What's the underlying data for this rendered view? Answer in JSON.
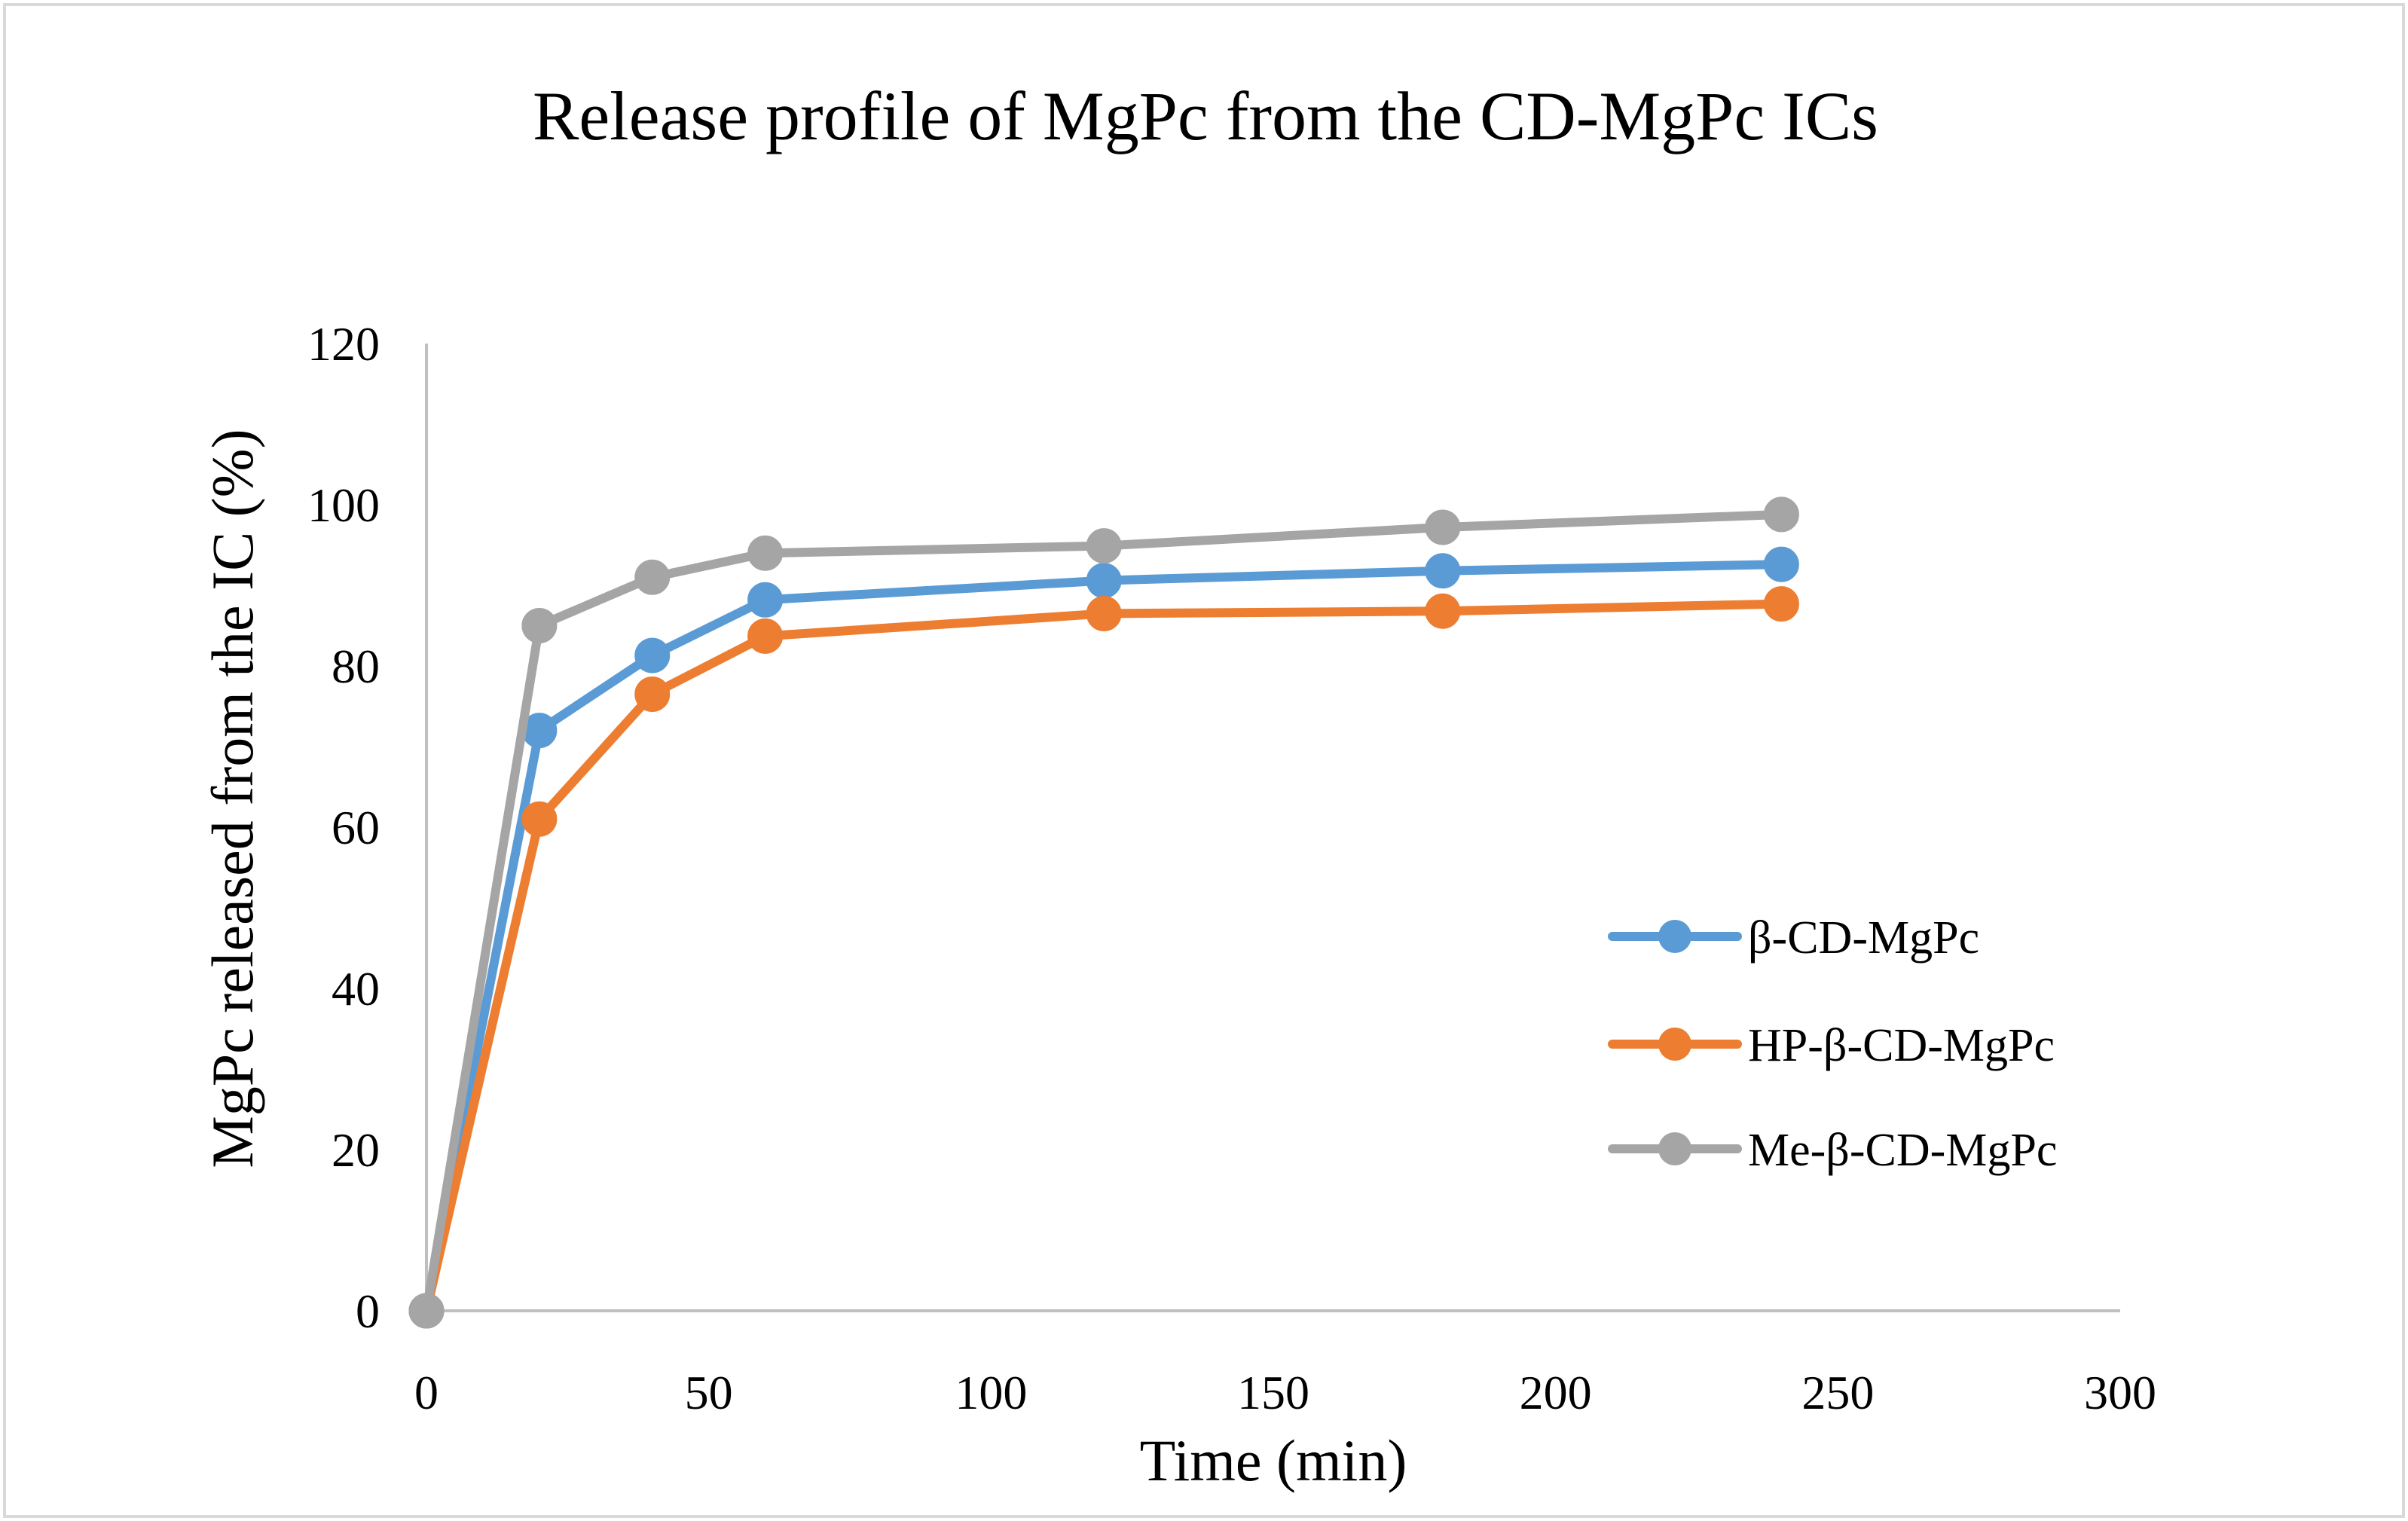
{
  "chart_data": {
    "type": "line",
    "title": "Release profile of MgPc from the CD-MgPc ICs",
    "xlabel": "Time (min)",
    "ylabel": "MgPc released from the IC (%)",
    "xlim": [
      0,
      300
    ],
    "ylim": [
      0,
      120
    ],
    "xticks": [
      0,
      50,
      100,
      150,
      200,
      250,
      300
    ],
    "yticks": [
      0,
      20,
      40,
      60,
      80,
      100,
      120
    ],
    "x": [
      0,
      20,
      40,
      60,
      120,
      180,
      240
    ],
    "series": [
      {
        "name": "β-CD-MgPc",
        "color": "#5B9BD5",
        "values": [
          0,
          72,
          81.3,
          88.2,
          90.6,
          91.8,
          92.6
        ]
      },
      {
        "name": "HP-β-CD-MgPc",
        "color": "#ED7D31",
        "values": [
          0,
          61,
          76.5,
          83.7,
          86.5,
          86.8,
          87.7
        ]
      },
      {
        "name": "Me-β-CD-MgPc",
        "color": "#A5A5A5",
        "values": [
          0,
          85,
          91,
          94,
          94.9,
          97.2,
          98.8
        ]
      }
    ],
    "grid": false,
    "legend": "right"
  }
}
